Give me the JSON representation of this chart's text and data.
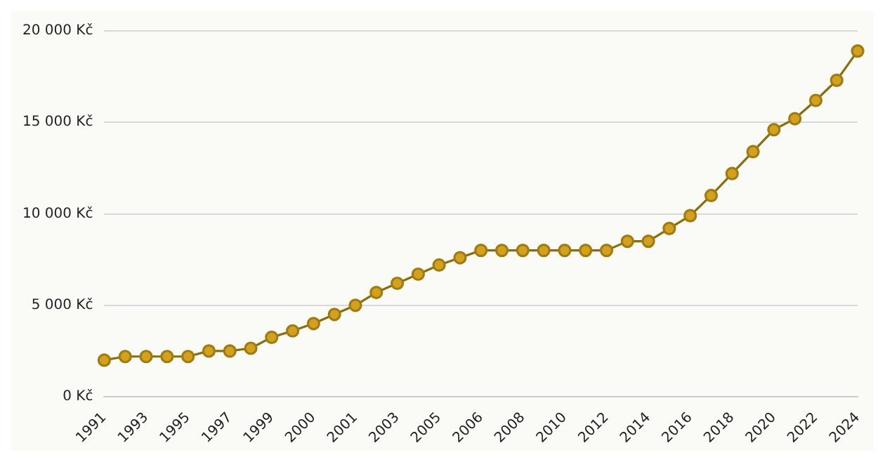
{
  "chart_data": {
    "type": "line",
    "categories": [
      "1991",
      null,
      "1993",
      null,
      "1995",
      null,
      "1997",
      null,
      "1999",
      null,
      "2000",
      null,
      "2001",
      null,
      "2003",
      null,
      "2005",
      null,
      "2006",
      null,
      "2008",
      null,
      "2010",
      null,
      "2012",
      null,
      "2014",
      null,
      "2016",
      null,
      "2018",
      null,
      "2020",
      null,
      "2022",
      null,
      "2024"
    ],
    "series": [
      {
        "color": "#d4a11e",
        "values": [
          2000,
          2200,
          2200,
          2200,
          2200,
          2500,
          2500,
          2650,
          3250,
          3600,
          4000,
          4500,
          5000,
          5700,
          6200,
          6700,
          7200,
          7600,
          8000,
          8000,
          8000,
          8000,
          8000,
          8000,
          8000,
          8500,
          8500,
          9200,
          9900,
          11000,
          12200,
          13400,
          14600,
          15200,
          16200,
          17300,
          18900
        ]
      }
    ],
    "ylim": [
      0,
      20000
    ],
    "yticks": [
      {
        "value": 0,
        "label": "0 Kč"
      },
      {
        "value": 5000,
        "label": "5 000 Kč"
      },
      {
        "value": 10000,
        "label": "10 000 Kč"
      },
      {
        "value": 15000,
        "label": "15 000 Kč"
      },
      {
        "value": 20000,
        "label": "20 000 Kč"
      }
    ],
    "grid": "y",
    "legend": false,
    "marker": "circle",
    "line_style": "solid"
  }
}
